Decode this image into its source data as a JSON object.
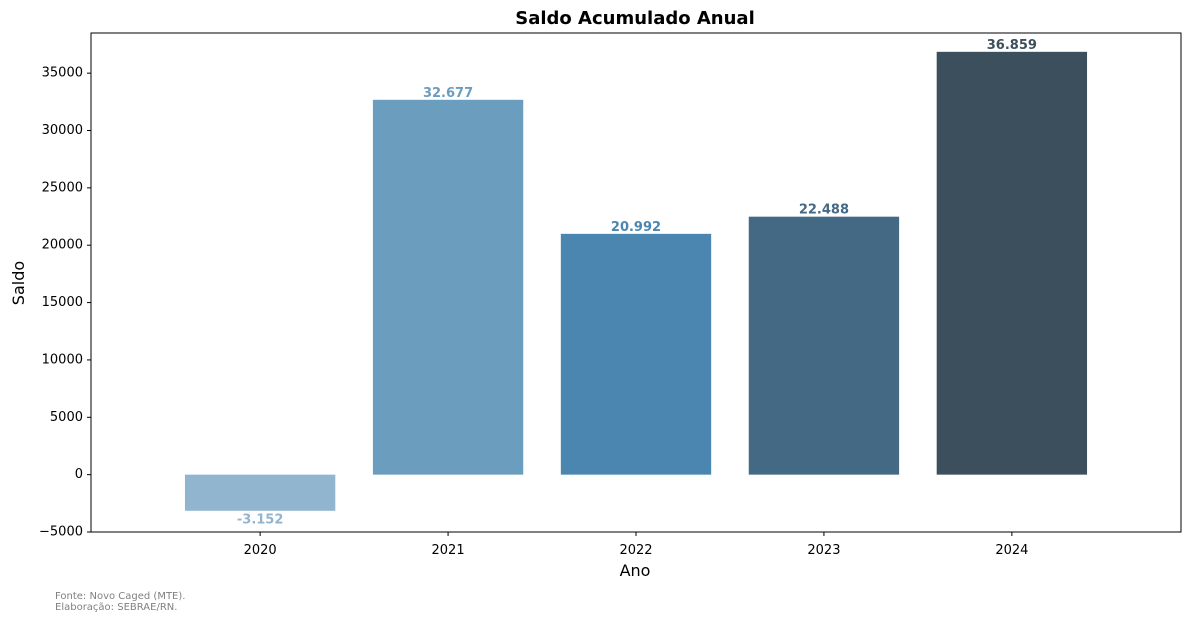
{
  "chart_data": {
    "type": "bar",
    "title": "Saldo Acumulado Anual",
    "xlabel": "Ano",
    "ylabel": "Saldo",
    "categories": [
      "2020",
      "2021",
      "2022",
      "2023",
      "2024"
    ],
    "values": [
      -3152,
      32677,
      20992,
      22488,
      36859
    ],
    "value_labels": [
      "-3.152",
      "32.677",
      "20.992",
      "22.488",
      "36.859"
    ],
    "colors": [
      "#92b5cf",
      "#6b9dbf",
      "#4a86b0",
      "#436985",
      "#3c4f5d"
    ],
    "ylim": [
      -5000,
      38500
    ],
    "yticks": [
      -5000,
      0,
      5000,
      10000,
      15000,
      20000,
      25000,
      30000,
      35000
    ],
    "ytick_labels": [
      "−5000",
      "0",
      "5000",
      "10000",
      "15000",
      "20000",
      "25000",
      "30000",
      "35000"
    ],
    "grid": false,
    "legend": "none"
  },
  "footer": {
    "source": "Fonte: Novo Caged (MTE).",
    "credit": "Elaboração: SEBRAE/RN."
  }
}
